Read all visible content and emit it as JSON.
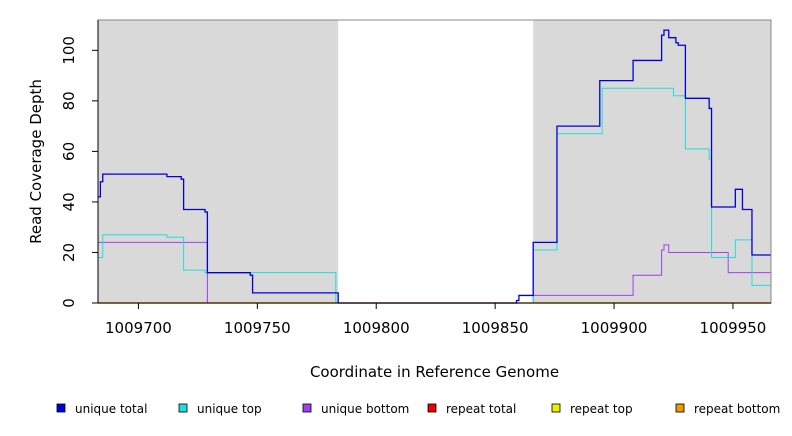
{
  "chart_data": {
    "type": "line",
    "title": "",
    "xlabel": "Coordinate in Reference Genome",
    "ylabel": "Read Coverage Depth",
    "xlim": [
      1009683,
      1009966
    ],
    "ylim": [
      0,
      112
    ],
    "x_ticks": [
      1009700,
      1009750,
      1009800,
      1009850,
      1009900,
      1009950
    ],
    "x_tick_labels": [
      "1009700",
      "1009750",
      "1009800",
      "1009850",
      "1009900",
      "1009950"
    ],
    "y_ticks": [
      0,
      20,
      40,
      60,
      80,
      100
    ],
    "y_tick_labels": [
      "0",
      "20",
      "40",
      "60",
      "80",
      "100"
    ],
    "shaded_regions": [
      [
        1009683,
        1009784
      ],
      [
        1009866,
        1009966
      ]
    ],
    "series": [
      {
        "name": "unique total",
        "color": "#0000dd",
        "x": [
          1009683,
          1009684,
          1009685,
          1009686,
          1009712,
          1009718,
          1009719,
          1009728,
          1009729,
          1009747,
          1009748,
          1009749,
          1009783,
          1009784,
          1009859,
          1009860,
          1009866,
          1009876,
          1009894,
          1009908,
          1009920,
          1009921,
          1009923,
          1009926,
          1009927,
          1009930,
          1009940,
          1009941,
          1009951,
          1009954,
          1009958,
          1009966
        ],
        "y": [
          42,
          48,
          51,
          51,
          50,
          49,
          37,
          36,
          12,
          11,
          4,
          4,
          4,
          0,
          1,
          3,
          24,
          70,
          88,
          96,
          106,
          108,
          105,
          103,
          102,
          81,
          77,
          38,
          45,
          37,
          19,
          19
        ]
      },
      {
        "name": "unique top",
        "color": "#22dddd",
        "x": [
          1009683,
          1009685,
          1009712,
          1009718,
          1009719,
          1009728,
          1009729,
          1009783,
          1009784,
          1009866,
          1009876,
          1009894,
          1009895,
          1009924,
          1009925,
          1009930,
          1009940,
          1009941,
          1009951,
          1009958,
          1009966
        ],
        "y": [
          18,
          27,
          26,
          26,
          13,
          12,
          12,
          0,
          0,
          21,
          67,
          67,
          85,
          85,
          82,
          61,
          57,
          18,
          25,
          7,
          7
        ],
        "hidden_last_segment": false
      },
      {
        "name": "unique bottom",
        "color": "#a040ee",
        "x": [
          1009683,
          1009729,
          1009866,
          1009908,
          1009920,
          1009921,
          1009923,
          1009948,
          1009966
        ],
        "y": [
          24,
          0,
          3,
          11,
          21,
          23,
          20,
          12,
          12
        ]
      },
      {
        "name": "repeat total",
        "color": "#ee0000",
        "x": [
          1009683,
          1009966
        ],
        "y": [
          0,
          0
        ]
      },
      {
        "name": "repeat top",
        "color": "#eeee00",
        "x": [
          1009683,
          1009966
        ],
        "y": [
          0,
          0
        ]
      },
      {
        "name": "repeat bottom",
        "color": "#ee9900",
        "x": [
          1009683,
          1009966
        ],
        "y": [
          0,
          0
        ]
      }
    ],
    "legend": {
      "position": "bottom",
      "entries": [
        {
          "label": "unique total",
          "color": "#0000dd"
        },
        {
          "label": "unique top",
          "color": "#22dddd"
        },
        {
          "label": "unique bottom",
          "color": "#a040ee"
        },
        {
          "label": "repeat total",
          "color": "#ee0000"
        },
        {
          "label": "repeat top",
          "color": "#eeee00"
        },
        {
          "label": "repeat bottom",
          "color": "#ee9900"
        }
      ]
    },
    "colors": {
      "shade": "#d9d9d9",
      "frame": "#888888"
    }
  }
}
